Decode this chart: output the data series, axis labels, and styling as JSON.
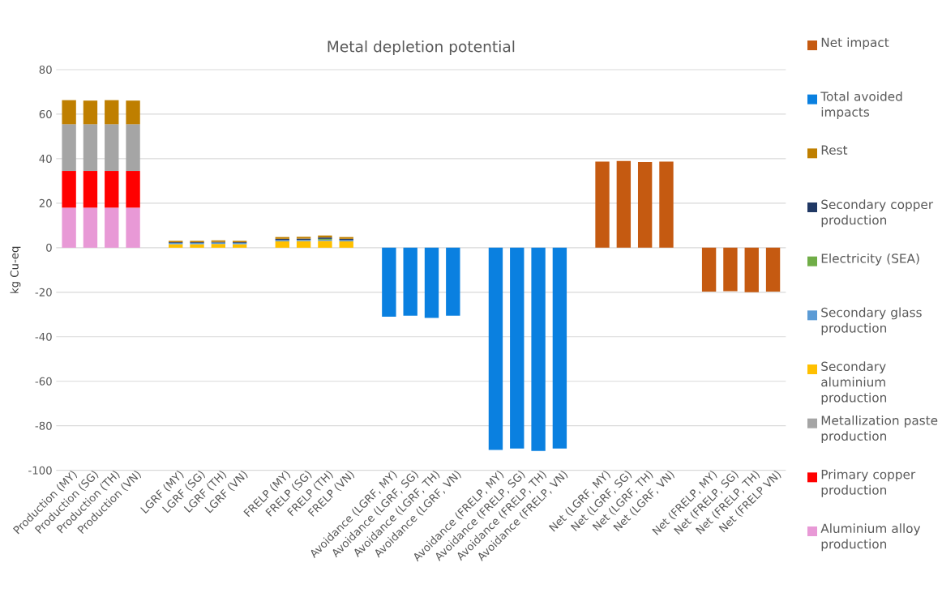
{
  "chart_data": {
    "type": "bar",
    "stacked": true,
    "title": "Metal depletion potential",
    "ylabel": "kg Cu-eq",
    "categories": [
      "Production (MY)",
      "Production (SG)",
      "Production (TH)",
      "Production (VN)",
      null,
      "LGRF (MY)",
      "LGRF (SG)",
      "LGRF (TH)",
      "LGRF (VN)",
      null,
      "FRELP (MY)",
      "FRELP (SG)",
      "FRELP (TH)",
      "FRELP (VN)",
      null,
      "Avoidance (LGRF, MY)",
      "Avoidance (LGRF, SG)",
      "Avoidance (LGRF, TH)",
      "Avoidance (LGRF, VN)",
      null,
      "Avoidance (FRELP, MY)",
      "Avoidance (FRELP, SG)",
      "Avoidance (FRELP, TH)",
      "Avoidance (FRELP, VN)",
      null,
      "Net (LGRF, MY)",
      "Net (LGRF, SG)",
      "Net (LGRF, TH)",
      "Net (LGRF, VN)",
      null,
      "Net (FRELP, MY)",
      "Net (FRELP, SG)",
      "Net (FRELP, TH)",
      "Net (FRELP VN)"
    ],
    "series": [
      {
        "name": "Aluminium alloy production",
        "color": "#e899d6",
        "values": [
          18,
          18,
          18,
          18,
          null,
          null,
          null,
          null,
          null,
          null,
          null,
          null,
          null,
          null,
          null,
          null,
          null,
          null,
          null,
          null,
          null,
          null,
          null,
          null,
          null,
          null,
          null,
          null,
          null,
          null,
          null,
          null,
          null,
          null
        ]
      },
      {
        "name": "Primary copper production",
        "color": "#ff0000",
        "values": [
          16.5,
          16.5,
          16.5,
          16.5,
          null,
          null,
          null,
          null,
          null,
          null,
          null,
          null,
          null,
          null,
          null,
          null,
          null,
          null,
          null,
          null,
          null,
          null,
          null,
          null,
          null,
          null,
          null,
          null,
          null,
          null,
          null,
          null,
          null,
          null
        ]
      },
      {
        "name": "Metallization paste production",
        "color": "#a5a5a5",
        "values": [
          21,
          21,
          21,
          21,
          null,
          null,
          null,
          null,
          null,
          null,
          null,
          null,
          null,
          null,
          null,
          null,
          null,
          null,
          null,
          null,
          null,
          null,
          null,
          null,
          null,
          null,
          null,
          null,
          null,
          null,
          null,
          null,
          null,
          null
        ]
      },
      {
        "name": "Secondary aluminium production",
        "color": "#ffc000",
        "values": [
          null,
          null,
          null,
          null,
          null,
          1.6,
          1.6,
          1.7,
          1.6,
          null,
          2.9,
          3.0,
          3.1,
          2.9,
          null,
          null,
          null,
          null,
          null,
          null,
          null,
          null,
          null,
          null,
          null,
          null,
          null,
          null,
          null,
          null,
          null,
          null,
          null,
          null
        ]
      },
      {
        "name": "Secondary glass production",
        "color": "#5b9bd5",
        "values": [
          null,
          null,
          null,
          null,
          null,
          0.6,
          0.6,
          0.6,
          0.6,
          null,
          0.5,
          0.5,
          0.5,
          0.5,
          null,
          null,
          null,
          null,
          null,
          null,
          null,
          null,
          null,
          null,
          null,
          null,
          null,
          null,
          null,
          null,
          null,
          null,
          null,
          null
        ]
      },
      {
        "name": "Electricity (SEA)",
        "color": "#70ad47",
        "values": [
          null,
          null,
          null,
          null,
          null,
          null,
          null,
          null,
          null,
          null,
          null,
          null,
          0.4,
          null,
          null,
          null,
          null,
          null,
          null,
          null,
          null,
          null,
          null,
          null,
          null,
          null,
          null,
          null,
          null,
          null,
          null,
          null,
          null,
          null
        ]
      },
      {
        "name": "Secondary copper production",
        "color": "#203864",
        "values": [
          null,
          null,
          null,
          null,
          null,
          0.3,
          0.3,
          0.3,
          0.3,
          null,
          0.6,
          0.6,
          0.6,
          0.6,
          null,
          null,
          null,
          null,
          null,
          null,
          null,
          null,
          null,
          null,
          null,
          null,
          null,
          null,
          null,
          null,
          null,
          null,
          null,
          null
        ]
      },
      {
        "name": "Rest",
        "color": "#bf7f00",
        "values": [
          10.8,
          10.6,
          10.8,
          10.6,
          null,
          0.6,
          0.6,
          0.7,
          0.6,
          null,
          0.8,
          0.8,
          0.9,
          0.8,
          null,
          null,
          null,
          null,
          null,
          null,
          null,
          null,
          null,
          null,
          null,
          null,
          null,
          null,
          null,
          null,
          null,
          null,
          null,
          null
        ]
      },
      {
        "name": "Total avoided impacts",
        "color": "#0a80e0",
        "values": [
          null,
          null,
          null,
          null,
          null,
          null,
          null,
          null,
          null,
          null,
          null,
          null,
          null,
          null,
          null,
          -31,
          -30.5,
          -31.5,
          -30.5,
          null,
          -90.8,
          -90.2,
          -91.3,
          -90.2,
          null,
          null,
          null,
          null,
          null,
          null,
          null,
          null,
          null,
          null
        ]
      },
      {
        "name": "Net impact",
        "color": "#c55a11",
        "values": [
          null,
          null,
          null,
          null,
          null,
          null,
          null,
          null,
          null,
          null,
          null,
          null,
          null,
          null,
          null,
          null,
          null,
          null,
          null,
          null,
          null,
          null,
          null,
          null,
          null,
          38.7,
          39,
          38.5,
          38.7,
          null,
          -19.7,
          -19.5,
          -20,
          -19.7
        ]
      }
    ],
    "ylim": [
      -100,
      80
    ],
    "yticks": [
      -100,
      -80,
      -60,
      -40,
      -20,
      0,
      20,
      40,
      60,
      80
    ],
    "grid": "y",
    "legend": "right"
  }
}
